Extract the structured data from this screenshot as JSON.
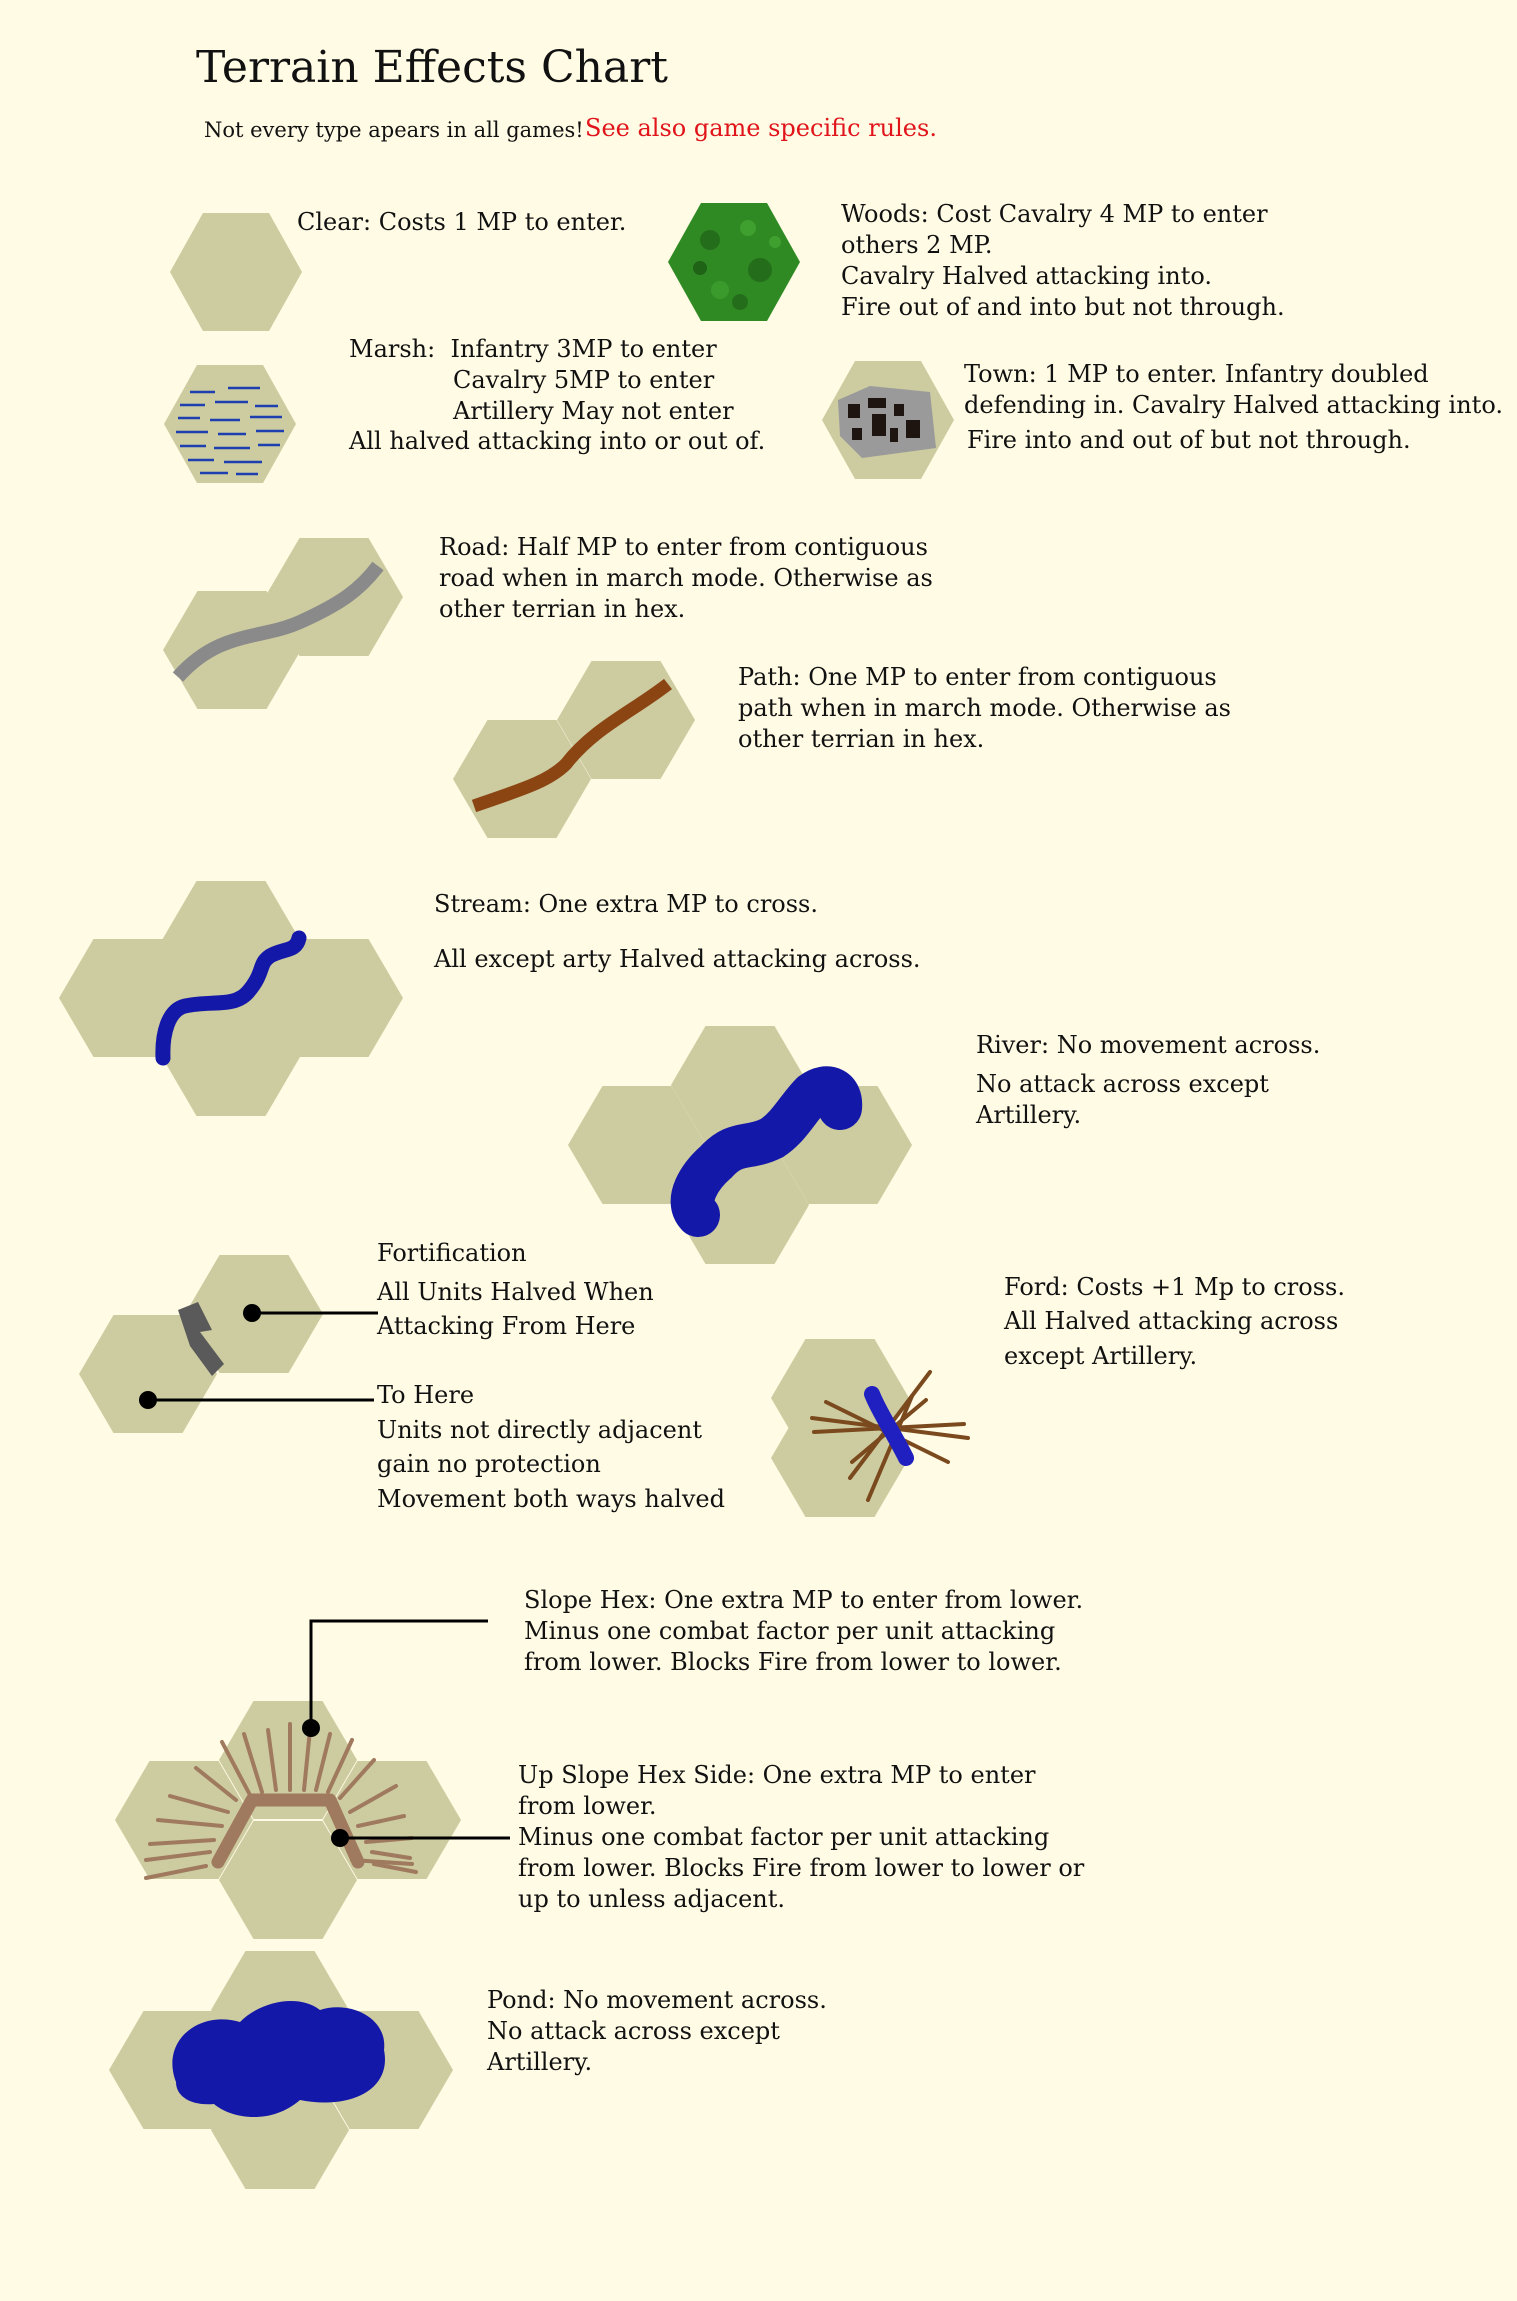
{
  "title": "Terrain Effects Chart",
  "subtitle": {
    "note": "Not every type apears in all games!",
    "warning": "See also game specific rules."
  },
  "colors": {
    "background": "#fffbe4",
    "hex": "#cdcba0",
    "woods": "#2f8a24",
    "water": "#1418a8",
    "road": "#8a8a8a",
    "path": "#8b4513",
    "town": "#9a9a9a",
    "fortification": "#5a5a5a",
    "slope": "#a07a5e",
    "warning_text": "#e0141a"
  },
  "terrain": {
    "clear": "Clear: Costs 1 MP to enter.",
    "woods": [
      "Woods: Cost Cavalry 4 MP to enter",
      "others 2 MP.",
      "Cavalry Halved attacking into.",
      "Fire out of and into but not through."
    ],
    "marsh": [
      "Marsh:  Infantry 3MP to enter",
      "Cavalry 5MP to enter",
      "Artillery May not enter",
      "All halved attacking into or out of."
    ],
    "town": [
      "Town: 1 MP to enter. Infantry doubled",
      "defending in. Cavalry Halved attacking into.",
      "Fire into and out of but not through."
    ],
    "road": [
      "Road: Half MP to enter from contiguous",
      "road when in march mode. Otherwise as",
      "other terrian in hex."
    ],
    "path": [
      "Path: One MP to enter from contiguous",
      "path when in march mode. Otherwise as",
      "other terrian in hex."
    ],
    "stream": [
      "Stream: One extra MP to cross.",
      "All except arty Halved attacking across."
    ],
    "river": [
      "River: No movement across.",
      "No attack across except",
      "Artillery."
    ],
    "fortification": {
      "label": "Fortification",
      "from": [
        "All Units Halved When",
        "Attacking From Here"
      ],
      "to_label": "To Here",
      "to": [
        "Units not directly adjacent",
        "gain no protection",
        "Movement both ways halved"
      ]
    },
    "ford": [
      "Ford: Costs +1 Mp to cross.",
      "All Halved attacking across",
      "except Artillery."
    ],
    "slope_hex": [
      "Slope Hex: One extra MP to enter from lower.",
      "Minus one combat factor per unit attacking",
      "from lower. Blocks Fire from lower to lower."
    ],
    "up_slope": [
      "Up Slope Hex Side: One extra MP to enter",
      "from lower.",
      "Minus one combat factor per unit attacking",
      "from lower. Blocks Fire from lower to lower or",
      "up to unless adjacent."
    ],
    "pond": [
      "Pond: No movement across.",
      "No attack across except",
      "Artillery."
    ]
  }
}
